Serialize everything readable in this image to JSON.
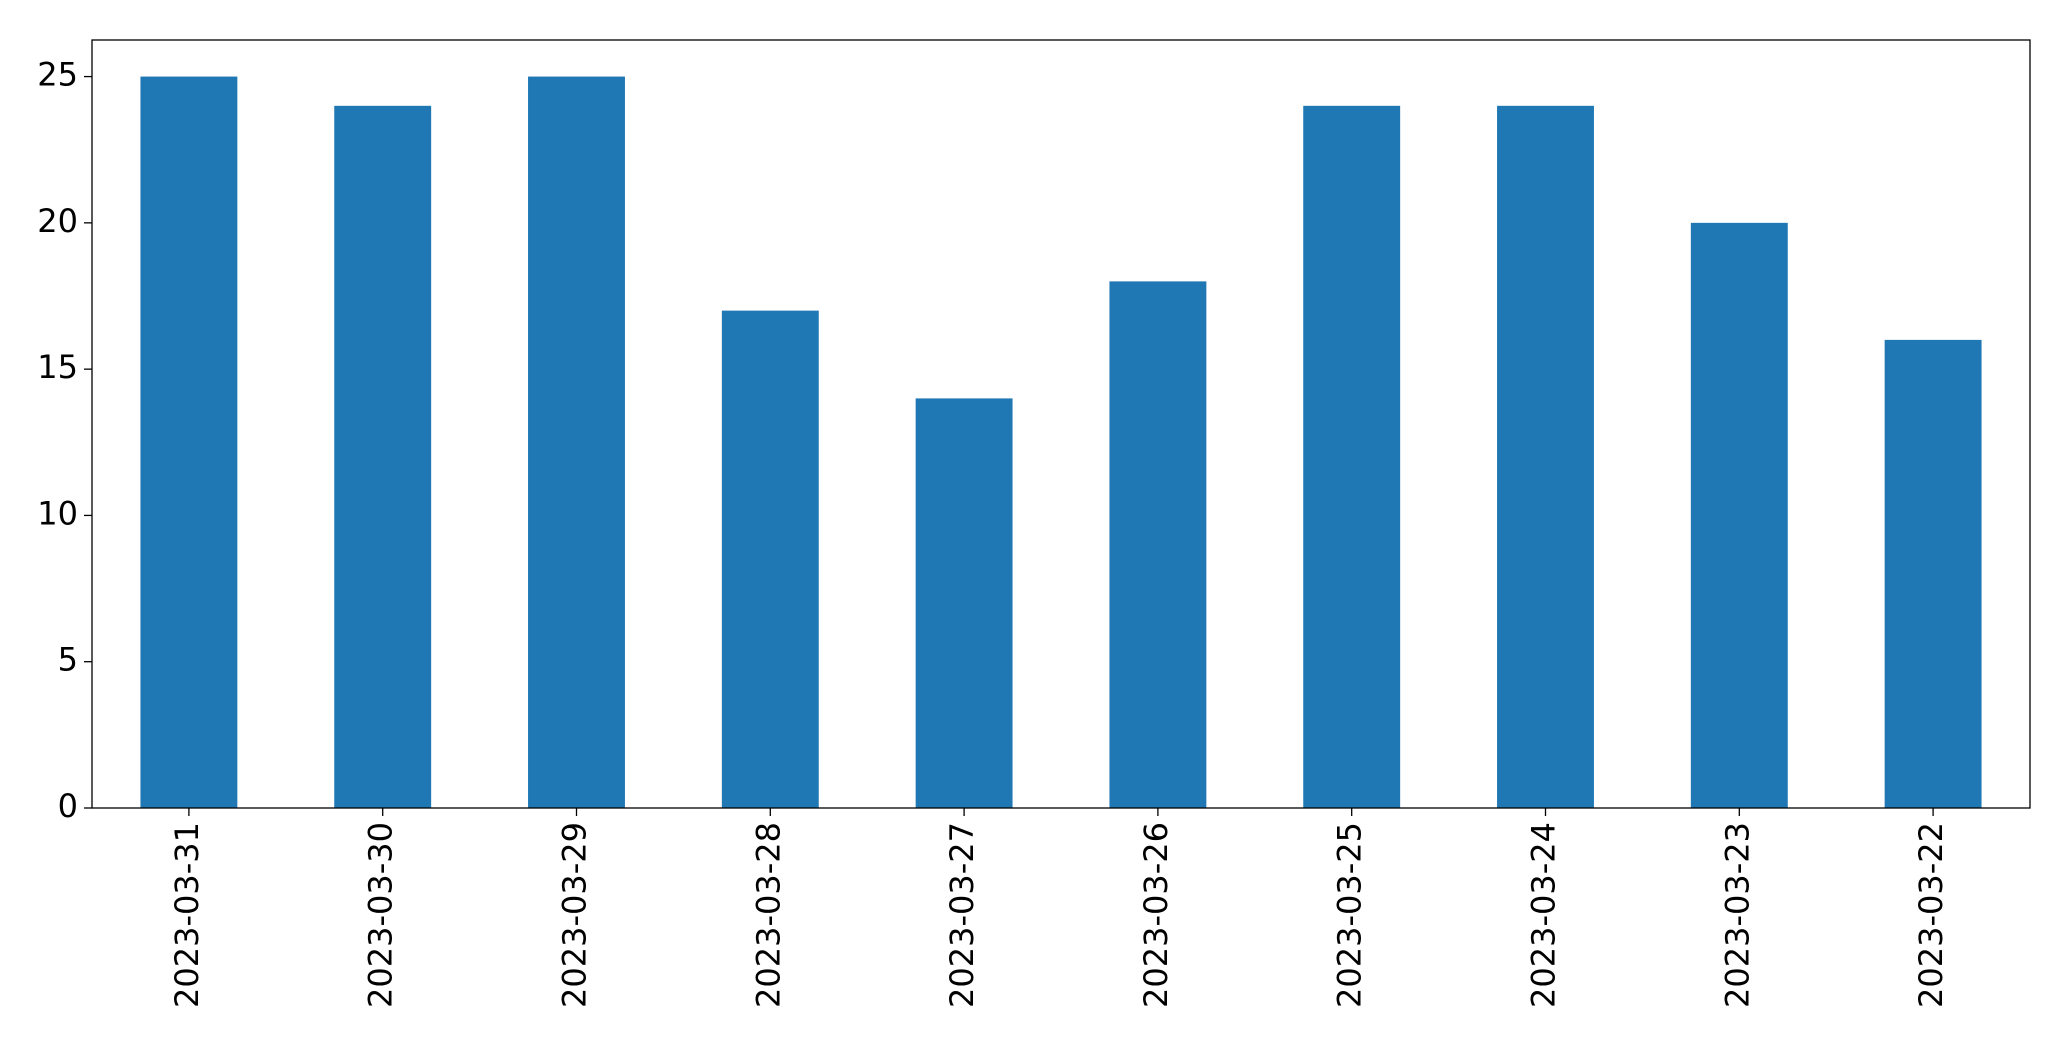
{
  "chart_data": {
    "type": "bar",
    "categories": [
      "2023-03-31",
      "2023-03-30",
      "2023-03-29",
      "2023-03-28",
      "2023-03-27",
      "2023-03-26",
      "2023-03-25",
      "2023-03-24",
      "2023-03-23",
      "2023-03-22"
    ],
    "values": [
      25,
      24,
      25,
      17,
      14,
      18,
      24,
      24,
      20,
      16
    ],
    "color": "#1f77b4",
    "ylim": [
      0,
      26.25
    ],
    "yticks": [
      0,
      5,
      10,
      15,
      20,
      25
    ],
    "grid": false
  }
}
